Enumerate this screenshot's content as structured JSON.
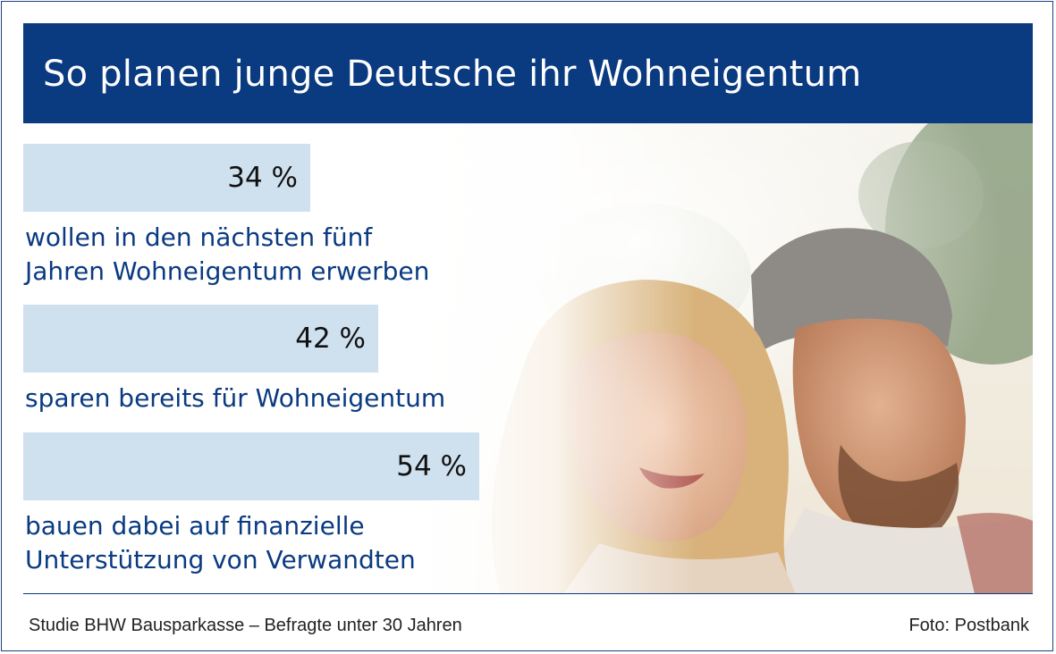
{
  "header": {
    "title": "So planen junge Deutsche ihr Wohneigentum"
  },
  "colors": {
    "header_bg": "#0a3a80",
    "bar_fill": "#cfe0ef",
    "label_text": "#0a3a80"
  },
  "chart_data": {
    "type": "bar",
    "orientation": "horizontal",
    "unit": "%",
    "categories": [
      "wollen in den nächsten fünf\nJahren Wohneigentum erwerben",
      "sparen bereits für Wohneigentum",
      "bauen dabei auf finanzielle\nUnterstützung von Verwandten"
    ],
    "values": [
      34,
      42,
      54
    ],
    "value_labels": [
      "34 %",
      "42 %",
      "54 %"
    ],
    "xlim": [
      0,
      100
    ]
  },
  "footer": {
    "source": "Studie BHW Bausparkasse – Befragte unter 30 Jahren",
    "photo_credit": "Foto: Postbank"
  },
  "photo": {
    "icon": "couple-photo-image"
  }
}
